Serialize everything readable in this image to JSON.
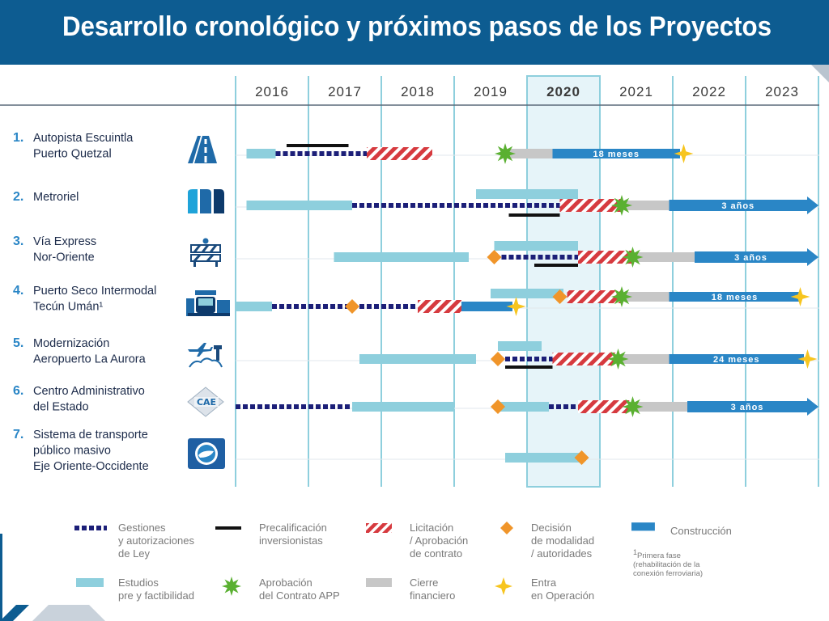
{
  "title": "Desarrollo cronológico y próximos pasos de los Proyectos",
  "colors": {
    "header": "#0d5c91",
    "estudios": "#8ecfdd",
    "gestiones": "#1c1f78",
    "precalificacion": "#111111",
    "licitacion": "#d63a3f",
    "decision": "#f0952a",
    "aprobacion": "#5ab031",
    "cierre": "#c7c7c7",
    "construccion": "#2a86c6",
    "operacion": "#f7c51f",
    "gridline": "#8ecfdd",
    "highlight": "#e6f4f9"
  },
  "chart_data": {
    "type": "gantt",
    "years": [
      "2016",
      "2017",
      "2018",
      "2019",
      "2020",
      "2021",
      "2022",
      "2023"
    ],
    "highlight_year": "2020",
    "x_range": [
      2016,
      2024
    ],
    "rows": [
      {
        "num": "1.",
        "name_lines": [
          "Autopista Escuintla",
          "Puerto Quetzal"
        ],
        "icon": "highway-icon",
        "items": [
          {
            "type": "estudios",
            "start": 2016.15,
            "end": 2016.55
          },
          {
            "type": "gestiones",
            "start": 2016.55,
            "end": 2017.8
          },
          {
            "type": "precalificacion",
            "start": 2016.7,
            "end": 2017.55,
            "offset": -10
          },
          {
            "type": "licitacion",
            "start": 2017.8,
            "end": 2018.7
          },
          {
            "type": "aprobacion",
            "at": 2019.7
          },
          {
            "type": "cierre",
            "start": 2019.7,
            "end": 2020.35
          },
          {
            "type": "construccion",
            "start": 2020.35,
            "end": 2022.1,
            "label": "18 meses"
          },
          {
            "type": "operacion",
            "at": 2022.15
          }
        ]
      },
      {
        "num": "2.",
        "name_lines": [
          "Metroriel"
        ],
        "icon": "metro-icon",
        "items": [
          {
            "type": "estudios",
            "start": 2016.15,
            "end": 2017.6
          },
          {
            "type": "estudios",
            "start": 2019.3,
            "end": 2020.7,
            "offset": -14
          },
          {
            "type": "gestiones",
            "start": 2017.6,
            "end": 2020.45
          },
          {
            "type": "precalificacion",
            "start": 2019.75,
            "end": 2020.45,
            "offset": 12
          },
          {
            "type": "licitacion",
            "start": 2020.45,
            "end": 2021.3
          },
          {
            "type": "aprobacion",
            "at": 2021.3
          },
          {
            "type": "cierre",
            "start": 2021.3,
            "end": 2021.95
          },
          {
            "type": "construccion",
            "start": 2021.95,
            "end": 2024.0,
            "label": "3 años",
            "arrow": true
          }
        ]
      },
      {
        "num": "3.",
        "name_lines": [
          "Vía Express",
          "Nor-Oriente"
        ],
        "icon": "barrier-icon",
        "items": [
          {
            "type": "estudios",
            "start": 2017.35,
            "end": 2019.2
          },
          {
            "type": "estudios",
            "start": 2019.55,
            "end": 2020.7,
            "offset": -14
          },
          {
            "type": "decision",
            "at": 2019.55
          },
          {
            "type": "gestiones",
            "start": 2019.55,
            "end": 2020.7
          },
          {
            "type": "precalificacion",
            "start": 2020.1,
            "end": 2020.7,
            "offset": 10
          },
          {
            "type": "licitacion",
            "start": 2020.7,
            "end": 2021.45
          },
          {
            "type": "aprobacion",
            "at": 2021.45
          },
          {
            "type": "cierre",
            "start": 2021.45,
            "end": 2022.3
          },
          {
            "type": "construccion",
            "start": 2022.3,
            "end": 2024.0,
            "label": "3 años",
            "arrow": true
          }
        ]
      },
      {
        "num": "4.",
        "name_lines": [
          "Puerto Seco Intermodal",
          "Tecún Umán¹"
        ],
        "icon": "dry-port-icon",
        "items": [
          {
            "type": "estudios",
            "start": 2016.0,
            "end": 2016.5
          },
          {
            "type": "estudios",
            "start": 2019.5,
            "end": 2020.5,
            "offset": -16
          },
          {
            "type": "gestiones",
            "start": 2016.5,
            "end": 2018.5
          },
          {
            "type": "decision",
            "at": 2017.6
          },
          {
            "type": "licitacion",
            "start": 2018.5,
            "end": 2019.1
          },
          {
            "type": "construccion",
            "start": 2019.1,
            "end": 2019.8
          },
          {
            "type": "operacion",
            "at": 2019.85
          },
          {
            "type": "decision",
            "at": 2020.45,
            "offset": -12
          },
          {
            "type": "licitacion",
            "start": 2020.55,
            "end": 2021.3,
            "offset": -12
          },
          {
            "type": "aprobacion",
            "at": 2021.3,
            "offset": -12
          },
          {
            "type": "cierre",
            "start": 2021.3,
            "end": 2021.95,
            "offset": -12
          },
          {
            "type": "construccion",
            "start": 2021.95,
            "end": 2023.75,
            "label": "18 meses",
            "offset": -12
          },
          {
            "type": "operacion",
            "at": 2023.75,
            "offset": -12
          }
        ]
      },
      {
        "num": "5.",
        "name_lines": [
          "Modernización",
          "Aeropuerto La Aurora"
        ],
        "icon": "airport-icon",
        "items": [
          {
            "type": "estudios",
            "start": 2017.7,
            "end": 2019.3
          },
          {
            "type": "estudios",
            "start": 2019.6,
            "end": 2020.2,
            "offset": -16
          },
          {
            "type": "decision",
            "at": 2019.6
          },
          {
            "type": "gestiones",
            "start": 2019.6,
            "end": 2020.35
          },
          {
            "type": "precalificacion",
            "start": 2019.7,
            "end": 2020.35,
            "offset": 10
          },
          {
            "type": "licitacion",
            "start": 2020.35,
            "end": 2021.25
          },
          {
            "type": "aprobacion",
            "at": 2021.25
          },
          {
            "type": "cierre",
            "start": 2021.25,
            "end": 2021.95
          },
          {
            "type": "construccion",
            "start": 2021.95,
            "end": 2023.8,
            "label": "24 meses"
          },
          {
            "type": "operacion",
            "at": 2023.85
          }
        ]
      },
      {
        "num": "6.",
        "name_lines": [
          "Centro Administrativo",
          "del Estado"
        ],
        "icon": "cae-logo-icon",
        "items": [
          {
            "type": "gestiones",
            "start": 2016.0,
            "end": 2017.6
          },
          {
            "type": "estudios",
            "start": 2017.6,
            "end": 2019.0
          },
          {
            "type": "decision",
            "at": 2019.6
          },
          {
            "type": "estudios",
            "start": 2019.6,
            "end": 2020.3
          },
          {
            "type": "gestiones",
            "start": 2020.3,
            "end": 2020.7
          },
          {
            "type": "licitacion",
            "start": 2020.7,
            "end": 2021.45
          },
          {
            "type": "aprobacion",
            "at": 2021.45
          },
          {
            "type": "cierre",
            "start": 2021.45,
            "end": 2022.2
          },
          {
            "type": "construccion",
            "start": 2022.2,
            "end": 2024.0,
            "label": "3 años",
            "arrow": true
          }
        ]
      },
      {
        "num": "7.",
        "name_lines": [
          "Sistema de transporte",
          "público masivo",
          "Eje Oriente-Occidente"
        ],
        "icon": "transit-logo-icon",
        "items": [
          {
            "type": "estudios",
            "start": 2019.7,
            "end": 2020.75
          },
          {
            "type": "decision",
            "at": 2020.75
          }
        ]
      }
    ]
  },
  "legend": {
    "gestiones": "Gestiones\ny autorizaciones\nde Ley",
    "precalificacion": "Precalificación\ninversionistas",
    "licitacion": "Licitación\n/ Aprobación\nde contrato",
    "decision": "Decisión\nde modalidad\n/ autoridades",
    "construccion": "Construcción",
    "estudios": "Estudios\npre y factibilidad",
    "aprobacion": "Aprobación\ndel Contrato APP",
    "cierre": "Cierre\nfinanciero",
    "operacion": "Entra\nen Operación",
    "footnote_mark": "1",
    "footnote": "Primera fase (rehabilitación de la conexión ferroviaria)"
  }
}
